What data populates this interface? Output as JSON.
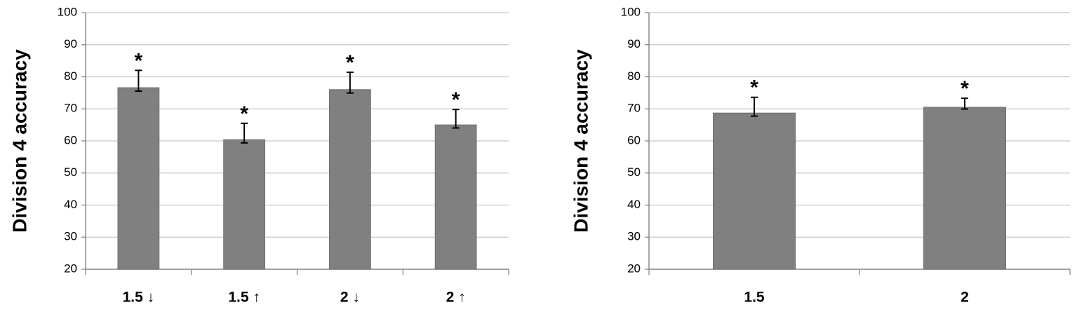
{
  "chart_data": [
    {
      "type": "bar",
      "y_label": "Division 4 accuracy",
      "categories": [
        "1.5 ↓",
        "1.5 ↑",
        "2 ↓",
        "2 ↑"
      ],
      "values": [
        76.6,
        60.4,
        76,
        65
      ],
      "errors": [
        5.4,
        5.1,
        5.4,
        4.8
      ],
      "annotations": [
        "*",
        "*",
        "*",
        "*"
      ],
      "color": "#808080",
      "ylim": [
        20,
        100
      ],
      "yticks": [
        20,
        30,
        40,
        50,
        60,
        70,
        80,
        90,
        100
      ],
      "grid": true
    },
    {
      "type": "bar",
      "y_label": "Division 4 accuracy",
      "categories": [
        "1.5",
        "2"
      ],
      "values": [
        68.7,
        70.5
      ],
      "errors": [
        4.9,
        2.8
      ],
      "annotations": [
        "*",
        "*"
      ],
      "color": "#808080",
      "ylim": [
        20,
        100
      ],
      "yticks": [
        20,
        30,
        40,
        50,
        60,
        70,
        80,
        90,
        100
      ],
      "grid": true
    }
  ]
}
